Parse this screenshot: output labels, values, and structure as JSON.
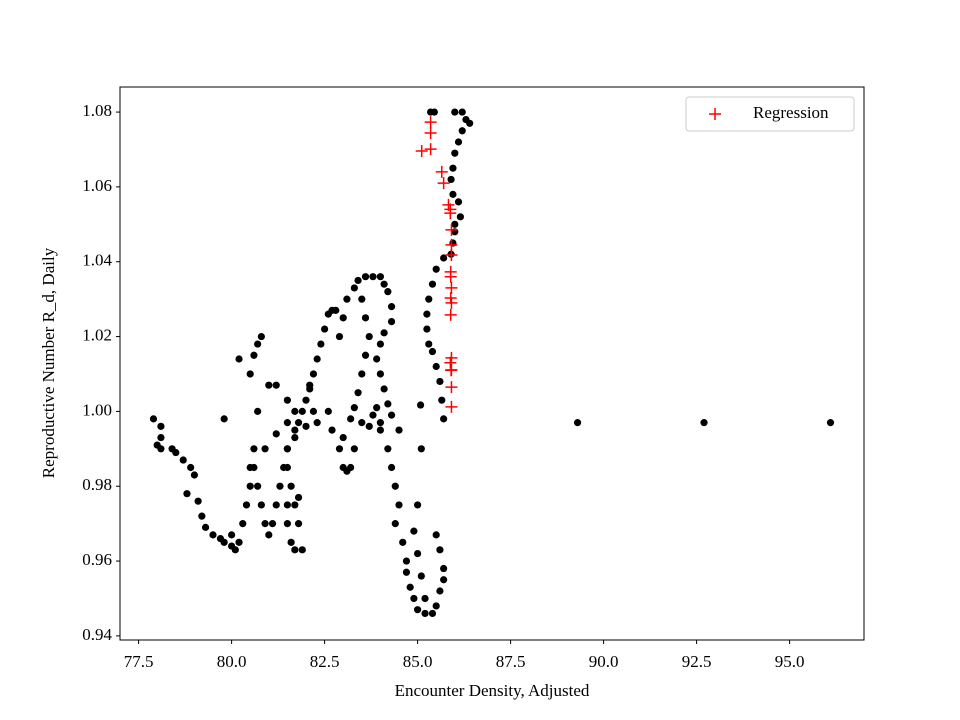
{
  "chart_data": {
    "type": "scatter",
    "xlabel": "Encounter Density, Adjusted",
    "ylabel": "Reproductive Number R_d, Daily",
    "xlim": [
      77.0,
      97.0
    ],
    "ylim": [
      0.9389,
      1.0867
    ],
    "xticks": [
      {
        "value": 77.5,
        "label": "77.5"
      },
      {
        "value": 80,
        "label": "80.0"
      },
      {
        "value": 82.5,
        "label": "82.5"
      },
      {
        "value": 85,
        "label": "85.0"
      },
      {
        "value": 87.5,
        "label": "87.5"
      },
      {
        "value": 90,
        "label": "90.0"
      },
      {
        "value": 92.5,
        "label": "92.5"
      },
      {
        "value": 95,
        "label": "95.0"
      }
    ],
    "yticks": [
      0.94,
      0.96,
      0.98,
      {
        "value": 1.0,
        "label": "1.00"
      },
      1.02,
      1.04,
      1.06,
      1.08
    ],
    "legend": "upper right",
    "series": [
      {
        "color": "#000000",
        "marker": "circle",
        "x": [
          86.0,
          86.2,
          86.3,
          86.4,
          86.2,
          86.1,
          86.0,
          85.95,
          85.9,
          85.95,
          86.1,
          86.15,
          86.0,
          86.0,
          85.95,
          85.9,
          85.35,
          85.45,
          85.7,
          85.5,
          85.4,
          85.3,
          85.25,
          85.25,
          85.3,
          85.4,
          85.5,
          85.6,
          85.65,
          85.7,
          85.08,
          83.4,
          83.6,
          83.8,
          84.0,
          84.1,
          84.2,
          84.3,
          84.3,
          84.1,
          84.0,
          83.9,
          84.0,
          84.1,
          84.2,
          84.3,
          84.0,
          83.7,
          83.5,
          83.2,
          83.3,
          83.4,
          83.5,
          83.6,
          83.7,
          83.6,
          83.5,
          83.3,
          83.1,
          83.0,
          82.9,
          82.8,
          82.7,
          82.6,
          82.5,
          82.4,
          82.3,
          82.2,
          82.1,
          82.0,
          81.9,
          81.8,
          81.7,
          81.5,
          81.4,
          81.3,
          81.2,
          81.1,
          81.0,
          80.9,
          80.8,
          80.7,
          80.6,
          77.9,
          78.1,
          78.1,
          78.1,
          78.0,
          78.4,
          78.5,
          78.7,
          78.9,
          79.0,
          78.8,
          79.1,
          79.2,
          79.3,
          79.5,
          79.7,
          79.8,
          80.0,
          80.1,
          80.0,
          80.2,
          80.3,
          80.4,
          80.5,
          80.5,
          80.6,
          80.9,
          81.2,
          81.5,
          81.7,
          81.5,
          81.2,
          81.0,
          80.5,
          80.6,
          80.7,
          80.8,
          80.2,
          79.8,
          80.7,
          84.2,
          84.3,
          84.4,
          84.5,
          84.4,
          84.6,
          84.7,
          84.7,
          84.8,
          84.9,
          85.0,
          85.2,
          85.4,
          85.5,
          85.6,
          85.7,
          85.7,
          85.6,
          85.5,
          85.0,
          84.9,
          85.0,
          85.1,
          85.2,
          84.5,
          85.1,
          82.7,
          82.9,
          83.0,
          83.1,
          83.2,
          83.3,
          83.0,
          82.6,
          82.3,
          82.0,
          81.7,
          81.5,
          81.5,
          81.6,
          81.7,
          81.5,
          81.6,
          81.7,
          81.9,
          81.8,
          81.8,
          81.5,
          82.1,
          82.2,
          83.8,
          83.9,
          84.0,
          89.3,
          92.7,
          96.1
        ],
        "y": [
          1.08,
          1.08,
          1.078,
          1.077,
          1.075,
          1.072,
          1.069,
          1.065,
          1.062,
          1.058,
          1.056,
          1.052,
          1.05,
          1.048,
          1.045,
          1.042,
          1.08,
          1.08,
          1.041,
          1.038,
          1.034,
          1.03,
          1.026,
          1.022,
          1.018,
          1.016,
          1.012,
          1.008,
          1.003,
          0.998,
          1.0017,
          1.035,
          1.036,
          1.036,
          1.036,
          1.034,
          1.032,
          1.028,
          1.024,
          1.021,
          1.018,
          1.014,
          1.01,
          1.006,
          1.002,
          0.999,
          0.997,
          0.996,
          0.997,
          0.998,
          1.001,
          1.005,
          1.01,
          1.015,
          1.02,
          1.025,
          1.03,
          1.033,
          1.03,
          1.025,
          1.02,
          1.027,
          1.027,
          1.026,
          1.022,
          1.018,
          1.014,
          1.01,
          1.006,
          1.003,
          1.0,
          0.997,
          0.993,
          0.99,
          0.985,
          0.98,
          0.975,
          0.97,
          0.967,
          0.97,
          0.975,
          0.98,
          0.985,
          0.998,
          0.996,
          0.993,
          0.99,
          0.991,
          0.99,
          0.989,
          0.987,
          0.985,
          0.983,
          0.978,
          0.976,
          0.972,
          0.969,
          0.967,
          0.966,
          0.965,
          0.964,
          0.963,
          0.967,
          0.965,
          0.97,
          0.975,
          0.98,
          0.985,
          0.99,
          0.99,
          0.994,
          0.997,
          1.0,
          1.003,
          1.007,
          1.007,
          1.01,
          1.015,
          1.018,
          1.02,
          1.014,
          0.998,
          1.0,
          0.99,
          0.985,
          0.98,
          0.975,
          0.97,
          0.965,
          0.96,
          0.957,
          0.953,
          0.95,
          0.947,
          0.946,
          0.946,
          0.948,
          0.952,
          0.955,
          0.958,
          0.963,
          0.967,
          0.975,
          0.968,
          0.962,
          0.956,
          0.95,
          0.995,
          0.99,
          0.995,
          0.99,
          0.985,
          0.984,
          0.985,
          0.99,
          0.993,
          1.0,
          0.997,
          0.996,
          0.995,
          0.99,
          0.985,
          0.98,
          0.975,
          0.97,
          0.965,
          0.963,
          0.963,
          0.97,
          0.977,
          0.975,
          1.007,
          1.0,
          0.999,
          1.001,
          0.995,
          0.997,
          0.997,
          0.997
        ]
      },
      {
        "name": "Regression",
        "color": "#ff0000",
        "marker": "plus",
        "x": [
          85.35,
          85.35,
          85.11,
          85.35,
          85.65,
          85.7,
          85.83,
          85.88,
          85.91,
          85.91,
          85.91,
          85.89,
          85.91,
          85.89,
          85.89,
          85.91,
          85.91,
          85.91,
          85.91,
          85.88,
          85.89,
          85.91,
          85.88,
          85.9
        ],
        "y": [
          1.0773,
          1.0744,
          1.0696,
          1.0701,
          1.064,
          1.061,
          1.0552,
          1.053,
          1.0485,
          1.0445,
          1.0418,
          1.0373,
          1.033,
          1.0303,
          1.0258,
          1.0143,
          1.0111,
          1.0065,
          1.0012,
          1.054,
          1.036,
          1.029,
          1.013,
          1.011
        ]
      }
    ]
  }
}
